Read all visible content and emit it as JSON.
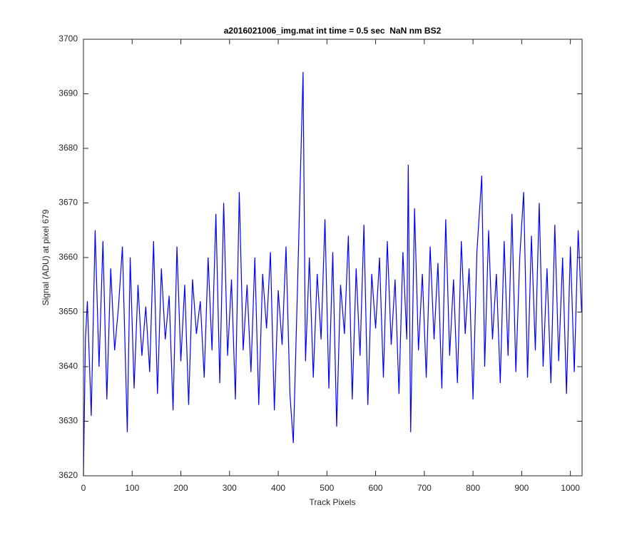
{
  "chart_data": {
    "type": "line",
    "title": "a2016021006_img.mat int time = 0.5 sec  NaN nm BS2",
    "x_label": "Track Pixels",
    "y_label": "Signal (ADU) at pixel 679",
    "x": [
      0,
      4,
      8,
      16,
      24,
      32,
      40,
      48,
      56,
      64,
      72,
      80,
      90,
      96,
      104,
      112,
      120,
      128,
      136,
      144,
      152,
      160,
      168,
      176,
      184,
      192,
      200,
      208,
      216,
      224,
      232,
      240,
      248,
      256,
      264,
      272,
      280,
      288,
      296,
      304,
      312,
      320,
      328,
      336,
      344,
      352,
      360,
      368,
      376,
      384,
      392,
      400,
      408,
      416,
      424,
      431,
      440,
      451,
      456,
      464,
      472,
      480,
      488,
      496,
      504,
      512,
      520,
      528,
      536,
      544,
      552,
      560,
      568,
      576,
      584,
      592,
      600,
      608,
      616,
      624,
      632,
      640,
      648,
      656,
      664,
      667,
      672,
      680,
      688,
      696,
      704,
      712,
      720,
      728,
      736,
      744,
      752,
      760,
      768,
      776,
      784,
      792,
      800,
      808,
      818,
      824,
      832,
      840,
      848,
      856,
      864,
      872,
      880,
      888,
      896,
      904,
      912,
      920,
      928,
      936,
      944,
      952,
      960,
      968,
      976,
      984,
      992,
      1000,
      1008,
      1016,
      1023
    ],
    "series": [
      {
        "color": "#0000ff",
        "values": [
          3620,
          3645,
          3652,
          3631,
          3665,
          3640,
          3663,
          3634,
          3658,
          3643,
          3651,
          3662,
          3628,
          3660,
          3636,
          3655,
          3642,
          3651,
          3639,
          3663,
          3635,
          3658,
          3645,
          3653,
          3632,
          3662,
          3641,
          3655,
          3633,
          3656,
          3646,
          3652,
          3638,
          3660,
          3643,
          3668,
          3637,
          3670,
          3642,
          3656,
          3634,
          3672,
          3643,
          3655,
          3639,
          3660,
          3633,
          3657,
          3647,
          3661,
          3632,
          3654,
          3644,
          3662,
          3635,
          3626,
          3656,
          3694,
          3641,
          3660,
          3638,
          3657,
          3645,
          3667,
          3636,
          3661,
          3629,
          3655,
          3646,
          3664,
          3634,
          3658,
          3642,
          3666,
          3633,
          3657,
          3647,
          3660,
          3638,
          3663,
          3644,
          3656,
          3635,
          3661,
          3645,
          3677,
          3628,
          3669,
          3643,
          3657,
          3638,
          3662,
          3645,
          3659,
          3636,
          3667,
          3642,
          3656,
          3637,
          3663,
          3646,
          3658,
          3634,
          3661,
          3675,
          3640,
          3665,
          3645,
          3657,
          3637,
          3663,
          3642,
          3668,
          3639,
          3660,
          3672,
          3638,
          3664,
          3643,
          3670,
          3640,
          3658,
          3637,
          3666,
          3641,
          3660,
          3635,
          3662,
          3639,
          3665,
          3650
        ]
      }
    ],
    "xlim": [
      0,
      1024
    ],
    "xticks": [
      0,
      100,
      200,
      300,
      400,
      500,
      600,
      700,
      800,
      900,
      1000
    ],
    "ylim": [
      3620,
      3700
    ],
    "yticks": [
      3620,
      3630,
      3640,
      3650,
      3660,
      3670,
      3680,
      3690,
      3700
    ],
    "grid": false
  }
}
